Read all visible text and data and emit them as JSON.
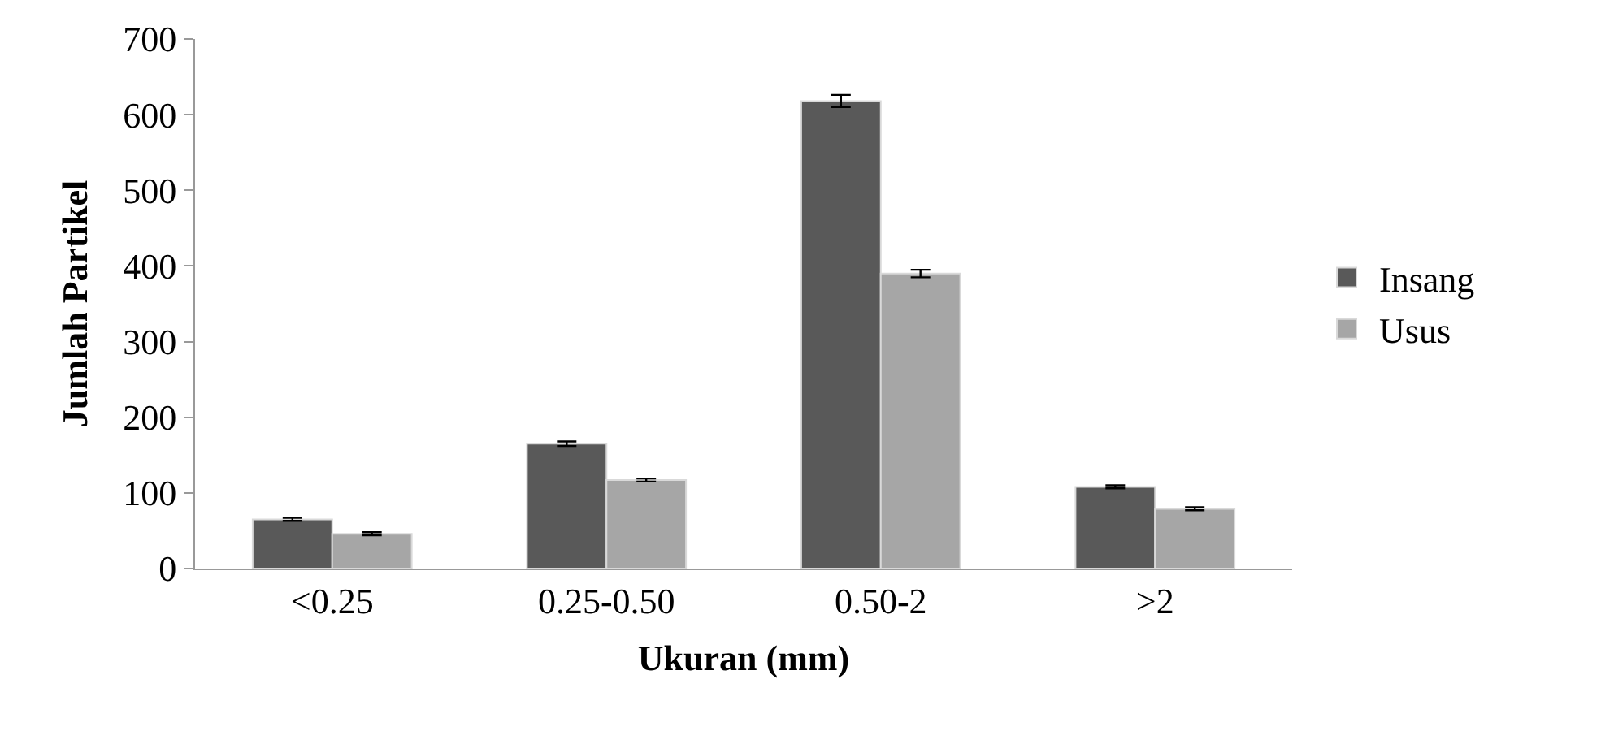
{
  "chart_data": {
    "type": "bar",
    "xlabel": "Ukuran (mm)",
    "ylabel": "Jumlah Partikel",
    "categories": [
      "<0.25",
      "0.25-0.50",
      "0.50-2",
      ">2"
    ],
    "series": [
      {
        "name": "Insang",
        "color": "#595959",
        "values": [
          65,
          165,
          618,
          108
        ],
        "errors": [
          2,
          3,
          8,
          2
        ]
      },
      {
        "name": "Usus",
        "color": "#a6a6a6",
        "values": [
          46,
          117,
          390,
          79
        ],
        "errors": [
          2,
          2,
          5,
          2
        ]
      }
    ],
    "ylim": [
      0,
      700
    ],
    "yticks": [
      0,
      100,
      200,
      300,
      400,
      500,
      600,
      700
    ],
    "legend": "right"
  }
}
